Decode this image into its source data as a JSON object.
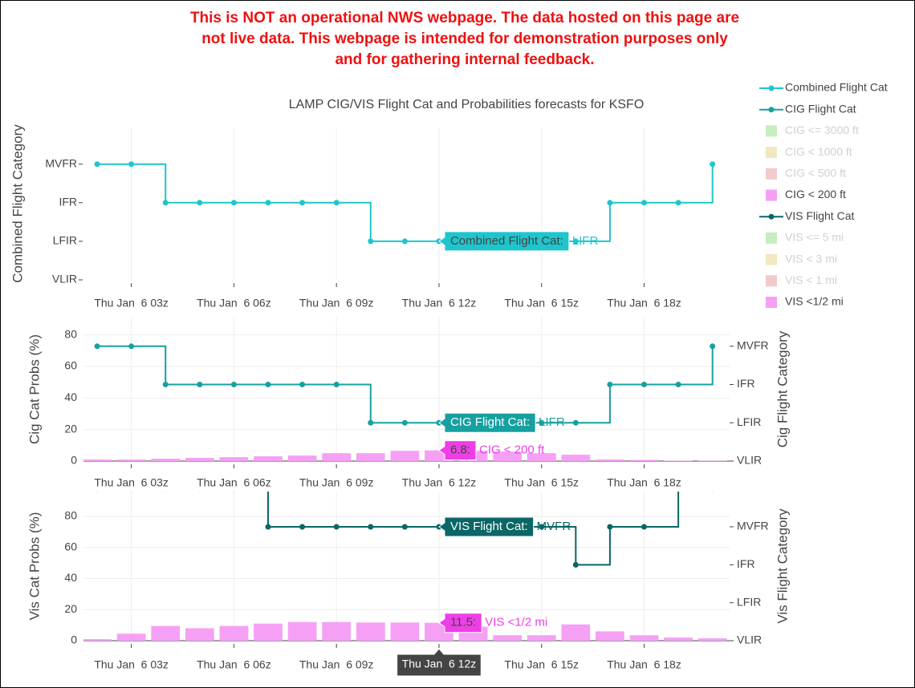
{
  "notice": [
    "This is NOT an operational NWS webpage. The data hosted on this page are",
    "not live data. This webpage is intended for demonstration purposes only",
    "and for gathering internal feedback."
  ],
  "title": "LAMP CIG/VIS Flight Cat and Probabilities forecasts for KSFO",
  "legend": [
    {
      "name": "Combined Flight Cat",
      "color": "#1fc5cc",
      "kind": "line",
      "visible": true
    },
    {
      "name": "CIG Flight Cat",
      "color": "#17a0a0",
      "kind": "line",
      "visible": true
    },
    {
      "name": "CIG <= 3000 ft",
      "color": "#98df8a",
      "kind": "bar",
      "visible": false
    },
    {
      "name": "CIG < 1000 ft",
      "color": "#e6d78f",
      "kind": "bar",
      "visible": false
    },
    {
      "name": "CIG < 500 ft",
      "color": "#e8a0a0",
      "kind": "bar",
      "visible": false
    },
    {
      "name": "CIG < 200 ft",
      "color": "#f5a0f5",
      "kind": "bar",
      "visible": true
    },
    {
      "name": "VIS Flight Cat",
      "color": "#0b6666",
      "kind": "line",
      "visible": true
    },
    {
      "name": "VIS <= 5 mi",
      "color": "#98df8a",
      "kind": "bar",
      "visible": false
    },
    {
      "name": "VIS < 3 mi",
      "color": "#e6d78f",
      "kind": "bar",
      "visible": false
    },
    {
      "name": "VIS < 1 mi",
      "color": "#e8a0a0",
      "kind": "bar",
      "visible": false
    },
    {
      "name": "VIS <1/2 mi",
      "color": "#f5a0f5",
      "kind": "bar",
      "visible": true
    }
  ],
  "chart_data": [
    {
      "type": "combo",
      "ylabel": "Combined Flight Category",
      "x": [
        2,
        3,
        4,
        5,
        6,
        7,
        8,
        9,
        10,
        11,
        12,
        13,
        14,
        15,
        16,
        17,
        18,
        19,
        20
      ],
      "xlim": [
        1.6,
        20.5
      ],
      "xticks": [
        {
          "value": 3,
          "label": "Thu Jan  6 03z"
        },
        {
          "value": 6,
          "label": "Thu Jan  6 06z"
        },
        {
          "value": 9,
          "label": "Thu Jan  6 09z"
        },
        {
          "value": 12,
          "label": "Thu Jan  6 12z"
        },
        {
          "value": 15,
          "label": "Thu Jan  6 15z"
        },
        {
          "value": 18,
          "label": "Thu Jan  6 18z"
        }
      ],
      "ylim": [
        0,
        3.95
      ],
      "yticks": [
        {
          "value": 0,
          "label": "VLIR"
        },
        {
          "value": 1,
          "label": "LFIR"
        },
        {
          "value": 2,
          "label": "IFR"
        },
        {
          "value": 3,
          "label": "MVFR"
        }
      ],
      "ygrid": false,
      "series": [
        {
          "name": "Combined Flight Cat",
          "type": "line",
          "color": "#1fc5cc",
          "values": [
            3,
            3,
            2,
            2,
            2,
            2,
            2,
            2,
            1,
            1,
            1,
            1,
            1,
            1,
            1,
            2,
            2,
            2,
            3
          ]
        }
      ],
      "hover": [
        {
          "x": 12,
          "y": 1,
          "axis": "y",
          "label": "Combined Flight Cat:",
          "text": "LIFR",
          "color": "#1fc5cc",
          "text_color": "#444"
        }
      ]
    },
    {
      "type": "combo",
      "ylabel": "Cig Cat Probs (%)",
      "y2label": "Cig Flight Category",
      "x": [
        2,
        3,
        4,
        5,
        6,
        7,
        8,
        9,
        10,
        11,
        12,
        13,
        14,
        15,
        16,
        17,
        18,
        19,
        20
      ],
      "xlim": [
        1.6,
        20.5
      ],
      "xticks": [
        {
          "value": 3,
          "label": "Thu Jan  6 03z"
        },
        {
          "value": 6,
          "label": "Thu Jan  6 06z"
        },
        {
          "value": 9,
          "label": "Thu Jan  6 09z"
        },
        {
          "value": 12,
          "label": "Thu Jan  6 12z"
        },
        {
          "value": 15,
          "label": "Thu Jan  6 15z"
        },
        {
          "value": 18,
          "label": "Thu Jan  6 18z"
        }
      ],
      "ylim": [
        0,
        91
      ],
      "yticks": [
        0,
        20,
        40,
        60,
        80
      ],
      "ygrid": true,
      "y2lim": [
        0,
        3.75
      ],
      "y2ticks": [
        {
          "value": 0,
          "label": "VLIR"
        },
        {
          "value": 1,
          "label": "LFIR"
        },
        {
          "value": 2,
          "label": "IFR"
        },
        {
          "value": 3,
          "label": "MVFR"
        }
      ],
      "series": [
        {
          "name": "CIG < 200 ft",
          "type": "bar",
          "color": "#f5a0f5",
          "values": [
            1,
            1,
            1.5,
            2,
            2.5,
            3,
            3.5,
            5,
            5,
            6.5,
            6.8,
            6.5,
            6,
            5,
            4,
            1,
            0.8,
            0.3,
            0.2
          ]
        },
        {
          "name": "CIG Flight Cat",
          "type": "line",
          "axis": "y2",
          "color": "#17a0a0",
          "values": [
            3,
            3,
            2,
            2,
            2,
            2,
            2,
            2,
            1,
            1,
            1,
            1,
            1,
            1,
            1,
            2,
            2,
            2,
            3
          ]
        }
      ],
      "hover": [
        {
          "x": 12,
          "y": 1,
          "axis": "y2",
          "label": "CIG Flight Cat:",
          "text": "LIFR",
          "color": "#17a0a0",
          "text_color": "#fff"
        },
        {
          "x": 12,
          "y": 6.8,
          "axis": "y",
          "label": "6.8:",
          "text": "CIG < 200 ft",
          "color": "#ee3fe6",
          "text_color": "#444"
        }
      ]
    },
    {
      "type": "combo",
      "ylabel": "Vis Cat Probs (%)",
      "y2label": "Vis Flight Category",
      "x": [
        2,
        3,
        4,
        5,
        6,
        7,
        8,
        9,
        10,
        11,
        12,
        13,
        14,
        15,
        16,
        17,
        18,
        19,
        20
      ],
      "xlim": [
        1.6,
        20.5
      ],
      "xticks": [
        {
          "value": 3,
          "label": "Thu Jan  6 03z"
        },
        {
          "value": 6,
          "label": "Thu Jan  6 06z"
        },
        {
          "value": 9,
          "label": "Thu Jan  6 09z"
        },
        {
          "value": 12,
          "label": "Thu Jan  6 12z"
        },
        {
          "value": 15,
          "label": "Thu Jan  6 15z"
        },
        {
          "value": 18,
          "label": "Thu Jan  6 18z"
        }
      ],
      "ylim": [
        0,
        96
      ],
      "yticks": [
        0,
        20,
        40,
        60,
        80
      ],
      "ygrid": true,
      "y2lim": [
        0,
        3.93
      ],
      "y2ticks": [
        {
          "value": 0,
          "label": "VLIR"
        },
        {
          "value": 1,
          "label": "LFIR"
        },
        {
          "value": 2,
          "label": "IFR"
        },
        {
          "value": 3,
          "label": "MVFR"
        }
      ],
      "series": [
        {
          "name": "VIS <1/2 mi",
          "type": "bar",
          "color": "#f5a0f5",
          "values": [
            1,
            4.5,
            9.5,
            8,
            9.5,
            11,
            12,
            12,
            11.7,
            11.7,
            11.5,
            9,
            3.5,
            3.5,
            10.5,
            6,
            3.5,
            2,
            1.5
          ]
        },
        {
          "name": "VIS Flight Cat",
          "type": "line",
          "axis": "y2",
          "color": "#0b6666",
          "values": [
            4,
            4,
            4,
            4,
            4,
            3,
            3,
            3,
            3,
            3,
            3,
            3,
            3,
            3,
            2,
            3,
            3,
            4,
            4
          ]
        }
      ],
      "hover": [
        {
          "x": 12,
          "y": 3,
          "axis": "y2",
          "label": "VIS Flight Cat:",
          "text": "MVFR",
          "color": "#0b6666",
          "text_color": "#fff"
        },
        {
          "x": 12,
          "y": 11.5,
          "axis": "y",
          "label": "11.5:",
          "text": "VIS <1/2 mi",
          "color": "#ee3fe6",
          "text_color": "#444"
        }
      ],
      "hover_x": {
        "value": 12,
        "label": "Thu Jan  6 12z"
      }
    }
  ]
}
